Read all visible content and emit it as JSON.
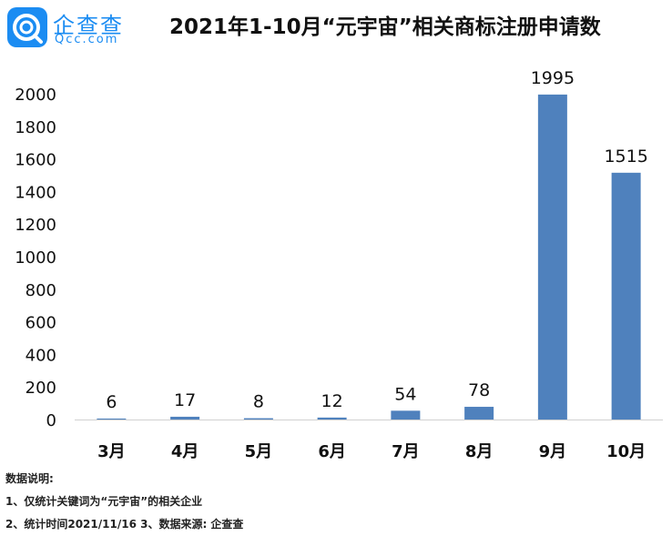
{
  "header": {
    "logo_cn": "企查查",
    "logo_en": "Qcc.com",
    "title": "2021年1-10月“元宇宙”相关商标注册申请数"
  },
  "colors": {
    "bar": "#4f81bd",
    "brand": "#1b8cf2"
  },
  "chart_data": {
    "type": "bar",
    "title": "2021年1-10月“元宇宙”相关商标注册申请数",
    "categories": [
      "3月",
      "4月",
      "5月",
      "6月",
      "7月",
      "8月",
      "9月",
      "10月"
    ],
    "values": [
      6,
      17,
      8,
      12,
      54,
      78,
      1995,
      1515
    ],
    "yticks": [
      "0",
      "200",
      "400",
      "600",
      "800",
      "1000",
      "1200",
      "1400",
      "1600",
      "1800",
      "2000"
    ],
    "ylim": [
      0,
      2000
    ],
    "grid": false,
    "legend": "none"
  },
  "notes": {
    "heading": "数据说明:",
    "line1": "1、仅统计关键词为“元宇宙”的相关企业",
    "line2": "2、统计时间2021/11/16  3、数据来源: 企查查"
  }
}
